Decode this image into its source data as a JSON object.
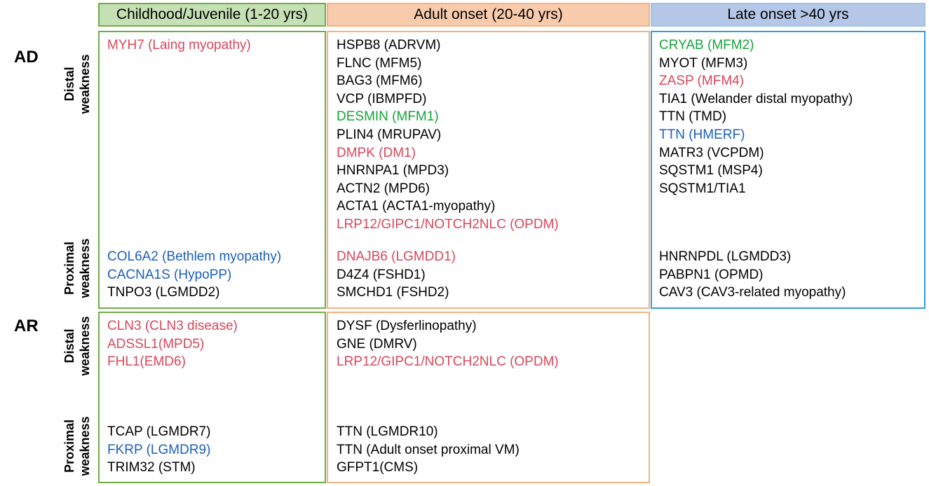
{
  "headers": {
    "childhood": "Childhood/Juvenile (1-20 yrs)",
    "adult": "Adult onset (20-40 yrs)",
    "late": "Late onset >40 yrs"
  },
  "groups": {
    "ad": "AD",
    "ar": "AR"
  },
  "row_labels": {
    "ad_distal": [
      "Distal",
      "weakness"
    ],
    "ad_proximal": [
      "Proximal",
      "weakness"
    ],
    "ar_distal": [
      "Distal",
      "weakness"
    ],
    "ar_proximal": [
      "Proximal",
      "weakness"
    ]
  },
  "colors": {
    "red": "#d9465a",
    "green": "#17a33a",
    "blue": "#1a5fbf",
    "black": "#000000"
  },
  "cells": {
    "ad_child_distal": [
      {
        "text": "MYH7 (Laing myopathy)",
        "color": "red"
      }
    ],
    "ad_child_proximal": [
      {
        "text": "COL6A2 (Bethlem myopathy)",
        "color": "blue"
      },
      {
        "text": "CACNA1S (HypoPP)",
        "color": "blue"
      },
      {
        "text": "TNPO3 (LGMDD2)",
        "color": "black"
      }
    ],
    "ad_adult_distal": [
      {
        "text": "HSPB8 (ADRVM)",
        "color": "black"
      },
      {
        "text": "FLNC (MFM5)",
        "color": "black"
      },
      {
        "text": "BAG3 (MFM6)",
        "color": "black"
      },
      {
        "text": "VCP (IBMPFD)",
        "color": "black"
      },
      {
        "text": "DESMIN (MFM1)",
        "color": "green"
      },
      {
        "text": "PLIN4 (MRUPAV)",
        "color": "black"
      },
      {
        "text": "DMPK (DM1)",
        "color": "red"
      },
      {
        "text": "HNRNPA1 (MPD3)",
        "color": "black"
      },
      {
        "text": "ACTN2 (MPD6)",
        "color": "black"
      },
      {
        "text": "ACTA1 (ACTA1-myopathy)",
        "color": "black"
      },
      {
        "text": "LRP12/GIPC1/NOTCH2NLC (OPDM)",
        "color": "red"
      }
    ],
    "ad_adult_proximal": [
      {
        "text": "DNAJB6 (LGMDD1)",
        "color": "red"
      },
      {
        "text": "D4Z4 (FSHD1)",
        "color": "black"
      },
      {
        "text": "SMCHD1 (FSHD2)",
        "color": "black"
      }
    ],
    "ad_late_distal": [
      {
        "text": "CRYAB (MFM2)",
        "color": "green"
      },
      {
        "text": "MYOT (MFM3)",
        "color": "black"
      },
      {
        "text": "ZASP (MFM4)",
        "color": "red"
      },
      {
        "text": "TIA1 (Welander distal myopathy)",
        "color": "black"
      },
      {
        "text": "TTN (TMD)",
        "color": "black"
      },
      {
        "text": "TTN (HMERF)",
        "color": "blue"
      },
      {
        "text": "MATR3 (VCPDM)",
        "color": "black"
      },
      {
        "text": "SQSTM1 (MSP4)",
        "color": "black"
      },
      {
        "text": "SQSTM1/TIA1",
        "color": "black"
      }
    ],
    "ad_late_proximal": [
      {
        "text": "HNRNPDL (LGMDD3)",
        "color": "black"
      },
      {
        "text": "PABPN1 (OPMD)",
        "color": "black"
      },
      {
        "text": "CAV3 (CAV3-related myopathy)",
        "color": "black"
      }
    ],
    "ar_child_distal": [
      {
        "text": "CLN3  (CLN3 disease)",
        "color": "red"
      },
      {
        "text": "ADSSL1(MPD5)",
        "color": "red"
      },
      {
        "text": "FHL1(EMD6)",
        "color": "red"
      }
    ],
    "ar_child_proximal": [
      {
        "text": "TCAP (LGMDR7)",
        "color": "black"
      },
      {
        "text": "FKRP (LGMDR9)",
        "color": "blue"
      },
      {
        "text": "TRIM32 (STM)",
        "color": "black"
      }
    ],
    "ar_adult_distal": [
      {
        "text": "DYSF (Dysferlinopathy)",
        "color": "black"
      },
      {
        "text": "GNE (DMRV)",
        "color": "black"
      },
      {
        "text": "LRP12/GIPC1/NOTCH2NLC (OPDM)",
        "color": "red"
      }
    ],
    "ar_adult_proximal": [
      {
        "text": "TTN (LGMDR10)",
        "color": "black"
      },
      {
        "text": "TTN (Adult onset proximal VM)",
        "color": "black"
      },
      {
        "text": "GFPT1(CMS)",
        "color": "black"
      }
    ]
  }
}
